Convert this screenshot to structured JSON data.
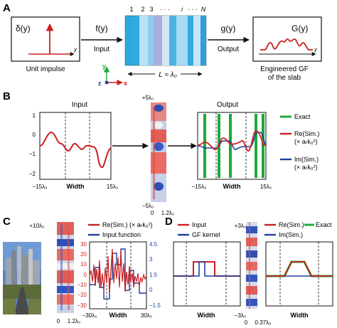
{
  "panels": {
    "a": {
      "label": "A",
      "impulse_title": "δ(y)",
      "impulse_axis": "y",
      "impulse_caption": "Unit impulse",
      "input_func": "f(y)",
      "input_label": "Input",
      "slab_numbers": [
        "1",
        "2",
        "3",
        "· · ·",
        "i",
        "· · ·",
        "N"
      ],
      "length_label": "L ≈ λ₀",
      "output_func": "g(y)",
      "output_label": "Output",
      "gf_title": "G(y)",
      "gf_axis": "y",
      "gf_caption_line1": "Engineered GF",
      "gf_caption_line2": "of the slab",
      "axis_y": "y",
      "axis_z": "z",
      "axis_x": "x"
    },
    "b": {
      "label": "B",
      "input_title": "Input",
      "output_title": "Output",
      "yticks": [
        "1",
        "0",
        "−1",
        "−2"
      ],
      "x_left": "−15λ₀",
      "x_right": "15λ₀",
      "x_label": "Width",
      "field_top": "+5λ₀",
      "field_bottom": "−5λ₀",
      "field_x0": "0",
      "field_x1": "1.2λ₀",
      "out_x_left": "−15λ₀",
      "out_x_right": "15λ₀",
      "out_x_label": "Width",
      "legend": {
        "exact": "Exact",
        "re_line1": "Re(Sim.)",
        "re_line2": "(× aₜk₀²)",
        "im_line1": "Im(Sim.)",
        "im_line2": "(× aₜk₀²)"
      }
    },
    "c": {
      "label": "C",
      "field_top": "+10λ₀",
      "field_x0": "0",
      "field_x1": "1.2λ₀",
      "legend_re": "Re(Sim.) (× aₜk₀²)",
      "legend_in": "Input function",
      "yticks_left": [
        "30",
        "20",
        "10",
        "0",
        "−10",
        "−20",
        "−30"
      ],
      "yticks_right": [
        "4.5",
        "3",
        "1.5",
        "0",
        "−1.5"
      ],
      "x_left": "−30λ₀",
      "x_right": "30λ₀",
      "x_label": "Width"
    },
    "d": {
      "label": "D",
      "legend_input": "Input",
      "legend_gf": "GF kernel",
      "field_top": "+3λ₀",
      "field_bottom": "−3λ₀",
      "field_x0": "0",
      "field_x1": "0.37λ₀",
      "legend_re": "Re(Sim.)",
      "legend_im": "Im(Sim.)",
      "legend_exact": "Exact",
      "x_label": "Width"
    }
  },
  "colors": {
    "red": "#cc1f1f",
    "blue": "#1f3f9e",
    "green": "#1daa3a",
    "slab_light": "#9fd8f0",
    "slab_dark": "#2aa6dd"
  }
}
